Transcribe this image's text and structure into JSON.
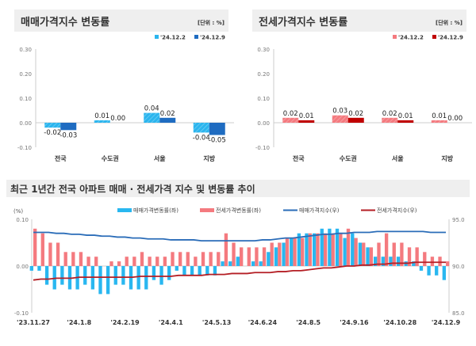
{
  "chart_data": [
    {
      "type": "bar",
      "title": "매매가격지수 변동률",
      "unit": "[단위 : %]",
      "categories": [
        "전국",
        "수도권",
        "서울",
        "지방"
      ],
      "series": [
        {
          "name": "'24.12.2",
          "values": [
            -0.02,
            0.01,
            0.04,
            -0.04
          ],
          "color": "#2bb5ee"
        },
        {
          "name": "'24.12.9",
          "values": [
            -0.03,
            0.0,
            0.02,
            -0.05
          ],
          "color": "#1f6cc1"
        }
      ],
      "ylim": [
        -0.1,
        0.3
      ],
      "yticks": [
        "0.30",
        "0.20",
        "0.10",
        "0.00",
        "-0.10"
      ],
      "labels": [
        [
          "-0.02",
          "0.01",
          "0.04",
          "-0.04"
        ],
        [
          "-0.03",
          "0.00",
          "0.02",
          "-0.05"
        ]
      ]
    },
    {
      "type": "bar",
      "title": "전세가격지수 변동률",
      "unit": "[단위 : %]",
      "categories": [
        "전국",
        "수도권",
        "서울",
        "지방"
      ],
      "series": [
        {
          "name": "'24.12.2",
          "values": [
            0.02,
            0.03,
            0.02,
            0.01
          ],
          "color": "#f47a7f"
        },
        {
          "name": "'24.12.9",
          "values": [
            0.01,
            0.02,
            0.01,
            0.0
          ],
          "color": "#c00000"
        }
      ],
      "ylim": [
        -0.1,
        0.3
      ],
      "yticks": [
        "0.30",
        "0.20",
        "0.10",
        "0.00",
        "-0.10"
      ],
      "labels": [
        [
          "0.02",
          "0.03",
          "0.02",
          "0.01"
        ],
        [
          "0.01",
          "0.02",
          "0.01",
          "0.00"
        ]
      ]
    },
    {
      "type": "bar+line",
      "title": "최근 1년간 전국 아파트 매매 · 전세가격 지수 및 변동률 추이",
      "left_unit": "(%)",
      "ylim": [
        -0.1,
        0.1
      ],
      "yticks_left": [
        "0.10",
        "0.00",
        "-0.10"
      ],
      "y2lim": [
        85,
        95
      ],
      "yticks_right": [
        "95.0",
        "90.0",
        "85.0"
      ],
      "xticks": [
        "'23.11.27",
        "'24.1.8",
        "'24.2.19",
        "'24.4.1",
        "'24.5.13",
        "'24.6.24",
        "'24.8.5",
        "'24.9.16",
        "'24.10.28",
        "'24.12.9"
      ],
      "series": [
        {
          "name": "매매가격변동률(좌)",
          "type": "bar",
          "color": "#29b7f0",
          "values": [
            -0.01,
            -0.01,
            -0.04,
            -0.05,
            -0.04,
            -0.05,
            -0.05,
            -0.04,
            -0.05,
            -0.06,
            -0.06,
            -0.04,
            -0.04,
            -0.05,
            -0.05,
            -0.05,
            -0.03,
            -0.04,
            -0.03,
            -0.01,
            -0.02,
            -0.02,
            -0.02,
            -0.02,
            -0.02,
            0.01,
            0.01,
            0.02,
            0.0,
            0.01,
            0.01,
            0.03,
            0.04,
            0.05,
            0.06,
            0.07,
            0.07,
            0.07,
            0.08,
            0.08,
            0.08,
            0.06,
            0.07,
            0.05,
            0.04,
            0.02,
            0.02,
            0.02,
            0.02,
            0.01,
            0.01,
            -0.01,
            -0.02,
            -0.02,
            -0.03
          ]
        },
        {
          "name": "전세가격변동률(좌)",
          "type": "bar",
          "color": "#f47a7f",
          "values": [
            0.08,
            0.07,
            0.05,
            0.05,
            0.03,
            0.03,
            0.03,
            0.02,
            0.02,
            0.0,
            0.01,
            0.01,
            0.02,
            0.02,
            0.03,
            0.02,
            0.02,
            0.02,
            0.03,
            0.03,
            0.03,
            0.02,
            0.03,
            0.03,
            0.03,
            0.07,
            0.05,
            0.04,
            0.04,
            0.04,
            0.04,
            0.05,
            0.05,
            0.06,
            0.06,
            0.06,
            0.07,
            0.07,
            0.07,
            0.07,
            0.07,
            0.08,
            0.06,
            0.05,
            0.04,
            0.05,
            0.07,
            0.05,
            0.05,
            0.04,
            0.04,
            0.03,
            0.02,
            0.02,
            0.01
          ]
        },
        {
          "name": "매매가격지수(우)",
          "type": "line",
          "color": "#2a6cb8",
          "values": [
            93.6,
            93.6,
            93.6,
            93.5,
            93.5,
            93.4,
            93.4,
            93.3,
            93.3,
            93.2,
            93.2,
            93.1,
            93.1,
            93.0,
            93.0,
            92.9,
            92.9,
            92.9,
            92.8,
            92.8,
            92.8,
            92.8,
            92.7,
            92.7,
            92.7,
            92.7,
            92.7,
            92.7,
            92.7,
            92.7,
            92.8,
            92.8,
            92.9,
            93.0,
            93.0,
            93.1,
            93.2,
            93.3,
            93.4,
            93.4,
            93.5,
            93.5,
            93.6,
            93.6,
            93.6,
            93.7,
            93.7,
            93.7,
            93.7,
            93.7,
            93.7,
            93.7,
            93.6,
            93.6,
            93.6
          ]
        },
        {
          "name": "전세가격지수(우)",
          "type": "line",
          "color": "#b41e24",
          "values": [
            88.5,
            88.6,
            88.6,
            88.7,
            88.7,
            88.7,
            88.8,
            88.8,
            88.8,
            88.8,
            88.8,
            88.8,
            88.8,
            88.8,
            88.9,
            88.9,
            88.9,
            88.9,
            88.9,
            89.0,
            89.0,
            89.0,
            89.0,
            89.1,
            89.1,
            89.1,
            89.2,
            89.2,
            89.2,
            89.3,
            89.3,
            89.3,
            89.4,
            89.4,
            89.5,
            89.5,
            89.6,
            89.7,
            89.8,
            89.8,
            89.9,
            90.0,
            90.0,
            90.1,
            90.1,
            90.2,
            90.2,
            90.3,
            90.3,
            90.3,
            90.4,
            90.4,
            90.4,
            90.4,
            90.4
          ]
        }
      ]
    }
  ]
}
